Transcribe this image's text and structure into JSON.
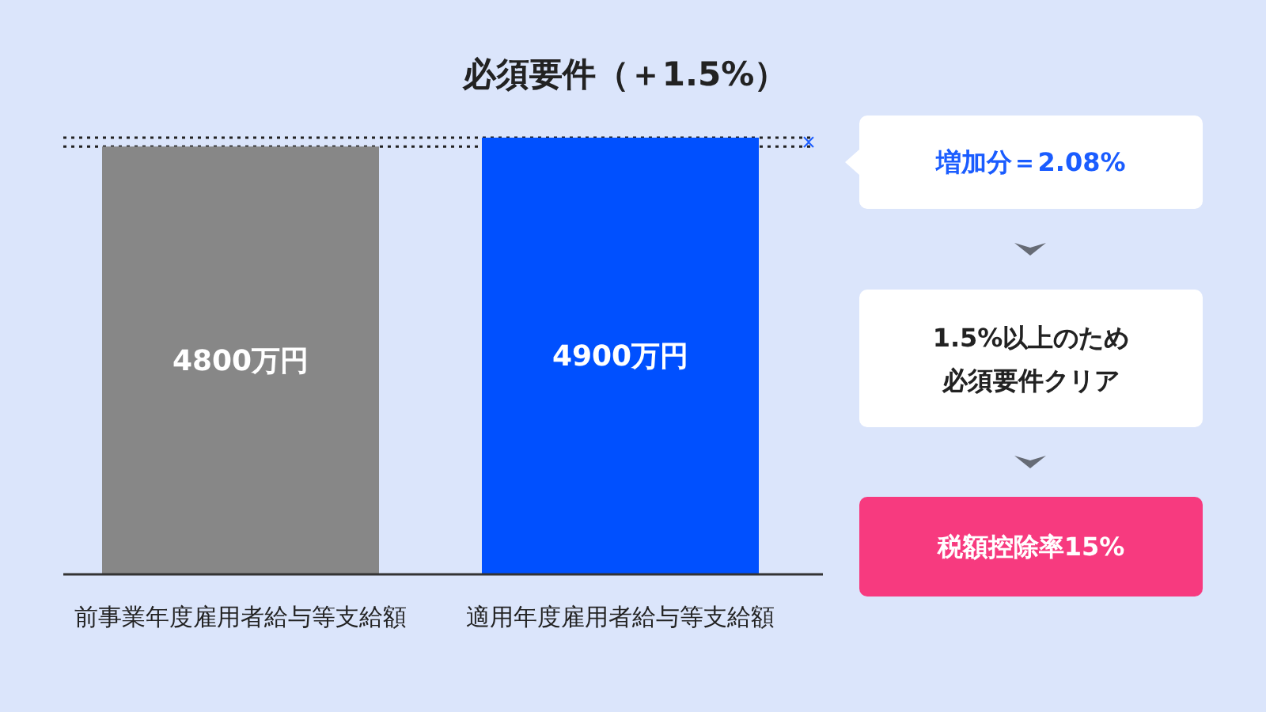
{
  "chart_data": [
    {
      "type": "bar",
      "title": "必須要件（＋1.5%）",
      "categories": [
        "前事業年度雇用者給与等支給額",
        "適用年度雇用者給与等支給額"
      ],
      "values": [
        4800,
        4900
      ],
      "colors": [
        "#878787",
        "#0050ff"
      ],
      "value_labels": [
        "4800万円",
        "4900万円"
      ],
      "ref_lines": [
        {
          "axis": "y",
          "value": 4800,
          "line_style": "dotted",
          "color": "#222222"
        },
        {
          "axis": "y",
          "value": 4900,
          "line_style": "dotted",
          "color": "#222222"
        }
      ]
    },
    {
      "type": "other",
      "annotations": [
        "増加分＝2.08%",
        "1.5%以上のため必須要件クリア",
        "税額控除率15%"
      ]
    }
  ]
}
